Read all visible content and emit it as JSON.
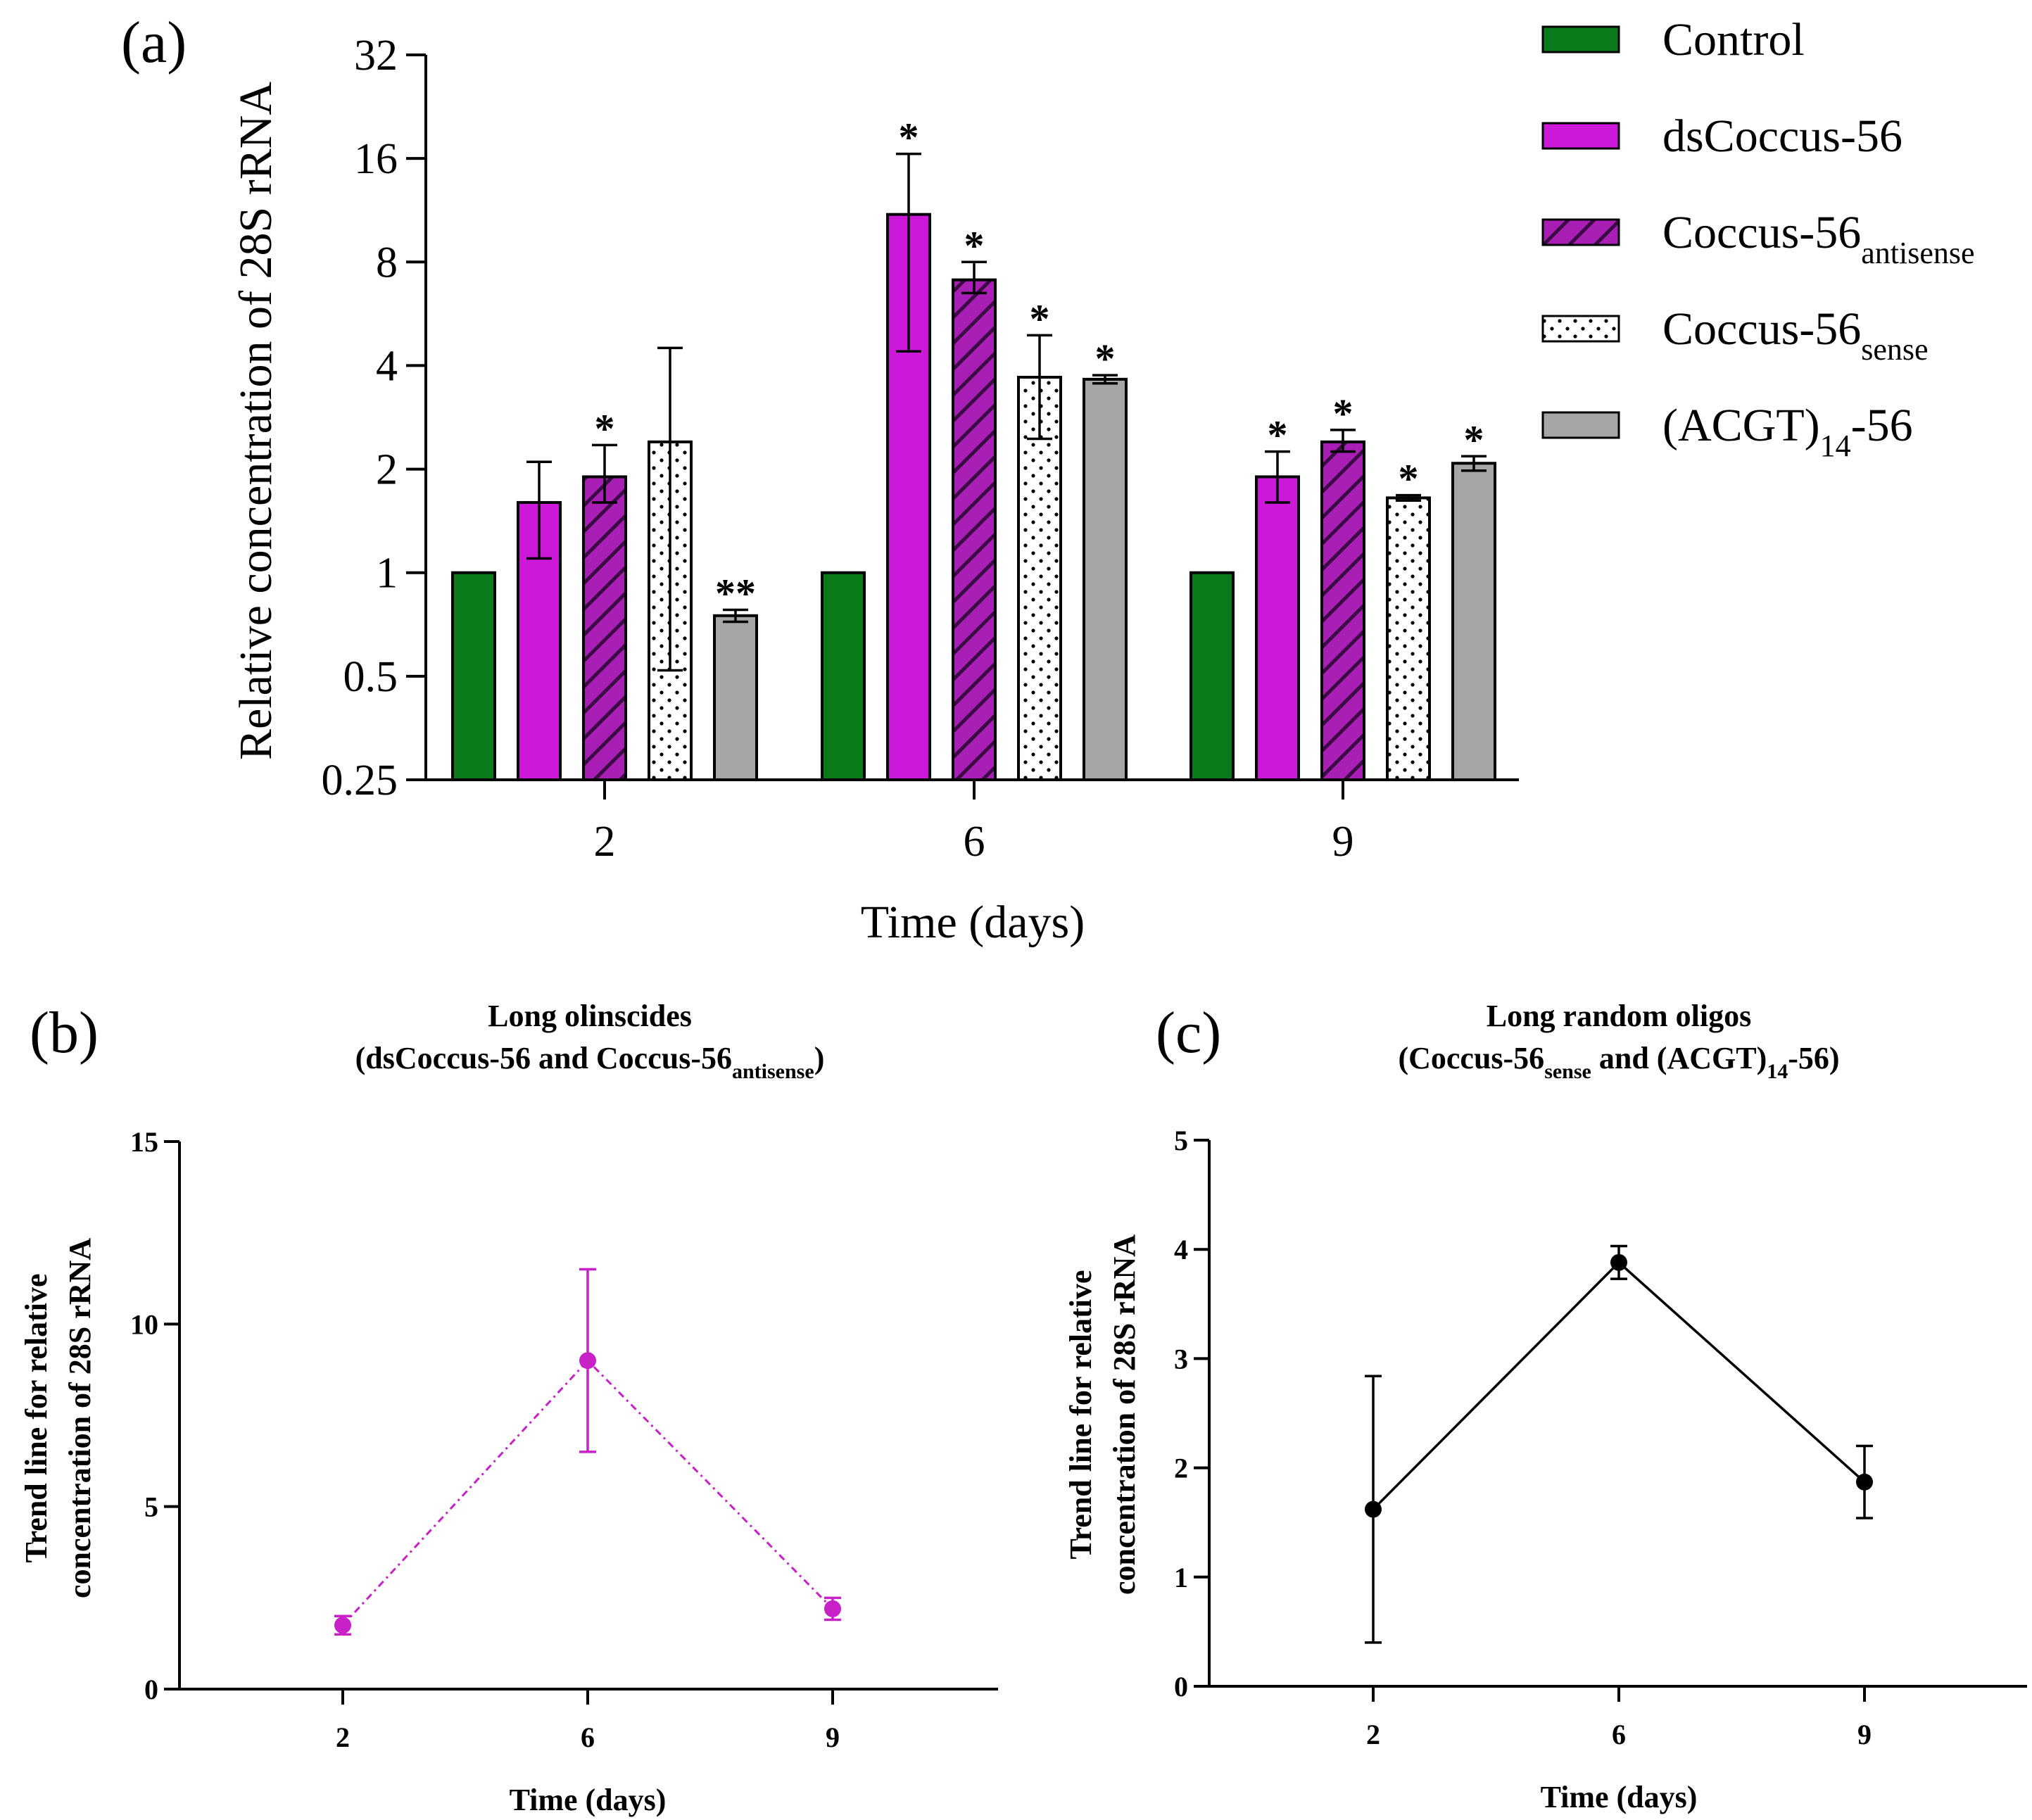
{
  "colors": {
    "control": "#0b7a1a",
    "ds": "#cc19d9",
    "antisense": "#a91fb5",
    "sense": "#ffffff",
    "acgt": "#a6a6a6",
    "trend_b": "#c721c7",
    "trend_c": "#000000"
  },
  "panels": {
    "a": "(a)",
    "b": "(b)",
    "c": "(c)"
  },
  "chart_data": [
    {
      "id": "a",
      "type": "bar",
      "title": "",
      "xlabel": "Time (days)",
      "ylabel": "Relative concentration of 28S rRNA",
      "yscale": "log2",
      "ylim": [
        0.25,
        32
      ],
      "yticks": [
        "0.25",
        "0.5",
        "1",
        "2",
        "4",
        "8",
        "16",
        "32"
      ],
      "categories": [
        "2",
        "6",
        "9"
      ],
      "legend_position": "top-right",
      "series": [
        {
          "key": "control",
          "name": "Control",
          "values": [
            1.0,
            1.0,
            1.0
          ],
          "err_low": [
            null,
            null,
            null
          ],
          "err_high": [
            null,
            null,
            null
          ],
          "sig": [
            "",
            "",
            ""
          ]
        },
        {
          "key": "ds",
          "name": "dsCoccus-56",
          "values": [
            1.6,
            11.0,
            1.9
          ],
          "err_low": [
            1.1,
            4.4,
            1.6
          ],
          "err_high": [
            2.1,
            16.5,
            2.25
          ],
          "sig": [
            "",
            "*",
            "*"
          ]
        },
        {
          "key": "antisense",
          "name_base": "Coccus-56",
          "name_sub": "antisense",
          "values": [
            1.9,
            7.1,
            2.4
          ],
          "err_low": [
            1.6,
            6.5,
            2.25
          ],
          "err_high": [
            2.35,
            8.0,
            2.6
          ],
          "sig": [
            "*",
            "*",
            "*"
          ]
        },
        {
          "key": "sense",
          "name_base": "Coccus-56",
          "name_sub": "sense",
          "values": [
            2.4,
            3.7,
            1.65
          ],
          "err_low": [
            0.52,
            2.45,
            1.62
          ],
          "err_high": [
            4.5,
            4.9,
            1.68
          ],
          "sig": [
            "",
            "*",
            "*"
          ]
        },
        {
          "key": "acgt",
          "name_pre": "(ACGT)",
          "name_sub": "14",
          "name_post": "-56",
          "values": [
            0.75,
            3.65,
            2.08
          ],
          "err_low": [
            0.72,
            3.55,
            1.98
          ],
          "err_high": [
            0.78,
            3.75,
            2.18
          ],
          "sig": [
            "**",
            "*",
            "*"
          ]
        }
      ]
    },
    {
      "id": "b",
      "type": "line",
      "title_line1": "Long olinscides",
      "title_line2_pre": "(dsCoccus-56 and Coccus-56",
      "title_line2_sub": "antisense",
      "title_line2_post": ")",
      "xlabel": "Time (days)",
      "ylabel_line1": "Trend line for relative",
      "ylabel_line2": "concentration of 28S rRNA",
      "ylim": [
        0,
        15
      ],
      "yticks": [
        "0",
        "5",
        "10",
        "15"
      ],
      "x": [
        "2",
        "6",
        "9"
      ],
      "values": [
        1.75,
        9.0,
        2.2
      ],
      "err": [
        0.25,
        2.5,
        0.3
      ]
    },
    {
      "id": "c",
      "type": "line",
      "title_line1": "Long random oligos",
      "title_line2_pre": "(Coccus-56",
      "title_line2_sub": "sense",
      "title_line2_mid": " and (ACGT)",
      "title_line2_sub2": "14",
      "title_line2_post": "-56)",
      "xlabel": "Time (days)",
      "ylabel_line1": "Trend line for relative",
      "ylabel_line2": "concentration of 28S rRNA",
      "ylim": [
        0,
        5
      ],
      "yticks": [
        "0",
        "1",
        "2",
        "3",
        "4",
        "5"
      ],
      "x": [
        "2",
        "6",
        "9"
      ],
      "values": [
        1.62,
        3.88,
        1.87
      ],
      "err": [
        1.22,
        0.15,
        0.33
      ]
    }
  ]
}
